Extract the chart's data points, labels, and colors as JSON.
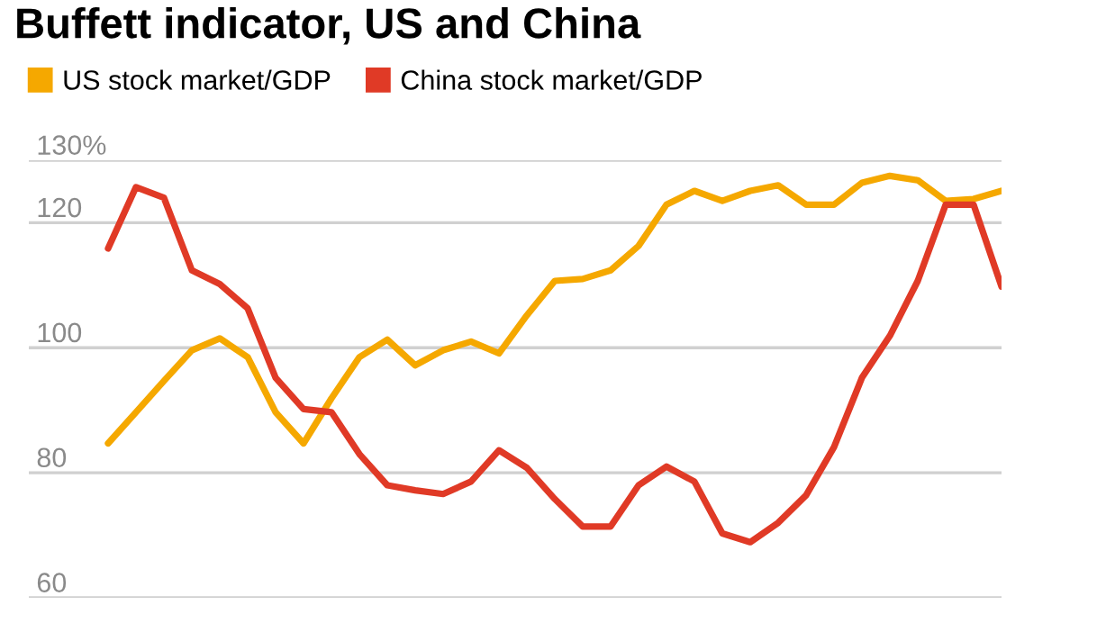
{
  "chart_data": {
    "type": "line",
    "title": "Buffett indicator, US and China",
    "categories": [
      null,
      null,
      null,
      null,
      null,
      null,
      null,
      null,
      null,
      null,
      null,
      null,
      null,
      null,
      null,
      null,
      null,
      null,
      null,
      null,
      null,
      null,
      null,
      null,
      null,
      null,
      null,
      null,
      null,
      null,
      null,
      null,
      null
    ],
    "series": [
      {
        "name": "US stock market/GDP",
        "color": "#f5a800",
        "values": [
          84.7,
          89.7,
          94.7,
          99.6,
          101.5,
          98.5,
          89.7,
          84.7,
          91.9,
          98.5,
          101.3,
          97.2,
          99.6,
          101,
          99.1,
          105.2,
          110.7,
          111,
          112.4,
          116.3,
          122.9,
          125.1,
          123.5,
          125.1,
          126,
          122.9,
          122.9,
          126.4,
          127.5,
          126.8,
          123.5,
          123.8,
          125.1
        ]
      },
      {
        "name": "China stock market/GDP",
        "color": "#e03a26",
        "values": [
          115.9,
          125.7,
          124,
          112.4,
          110.2,
          106.3,
          95.2,
          90.2,
          89.7,
          83,
          78,
          77.2,
          76.6,
          78.6,
          83.6,
          80.8,
          75.8,
          71.4,
          71.4,
          78,
          81,
          78.6,
          70.3,
          68.9,
          72,
          76.4,
          84.1,
          95.2,
          101.9,
          110.7,
          122.9,
          122.9,
          109.8
        ]
      }
    ],
    "ylim": [
      60,
      130
    ],
    "yticks": [
      {
        "value": 130,
        "label": "130%"
      },
      120,
      100,
      80,
      60
    ],
    "grid": "y",
    "legend": "top left",
    "marker": "none",
    "line_style": "solid",
    "tick_labels": "y"
  }
}
